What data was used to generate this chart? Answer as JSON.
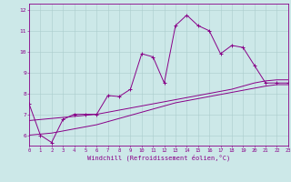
{
  "xlabel": "Windchill (Refroidissement éolien,°C)",
  "x": [
    0,
    1,
    2,
    3,
    4,
    5,
    6,
    7,
    8,
    9,
    10,
    11,
    12,
    13,
    14,
    15,
    16,
    17,
    18,
    19,
    20,
    21,
    22,
    23
  ],
  "y_main": [
    7.5,
    6.0,
    5.65,
    6.75,
    7.0,
    7.0,
    7.0,
    7.9,
    7.85,
    8.2,
    9.9,
    9.75,
    8.5,
    11.25,
    11.75,
    11.25,
    11.0,
    9.9,
    10.3,
    10.2,
    9.35,
    8.5,
    8.5,
    8.5
  ],
  "y_line1": [
    6.7,
    6.75,
    6.8,
    6.85,
    6.9,
    6.95,
    7.0,
    7.1,
    7.2,
    7.3,
    7.4,
    7.5,
    7.6,
    7.7,
    7.8,
    7.9,
    8.0,
    8.1,
    8.2,
    8.35,
    8.5,
    8.6,
    8.65,
    8.65
  ],
  "y_line2": [
    6.0,
    6.05,
    6.1,
    6.2,
    6.3,
    6.4,
    6.5,
    6.65,
    6.8,
    6.95,
    7.1,
    7.25,
    7.4,
    7.55,
    7.65,
    7.75,
    7.85,
    7.95,
    8.05,
    8.15,
    8.25,
    8.35,
    8.42,
    8.42
  ],
  "color": "#880088",
  "bg_color": "#cce8e8",
  "grid_color": "#aacccc",
  "ylim": [
    5.5,
    12.3
  ],
  "xlim": [
    0,
    23
  ]
}
